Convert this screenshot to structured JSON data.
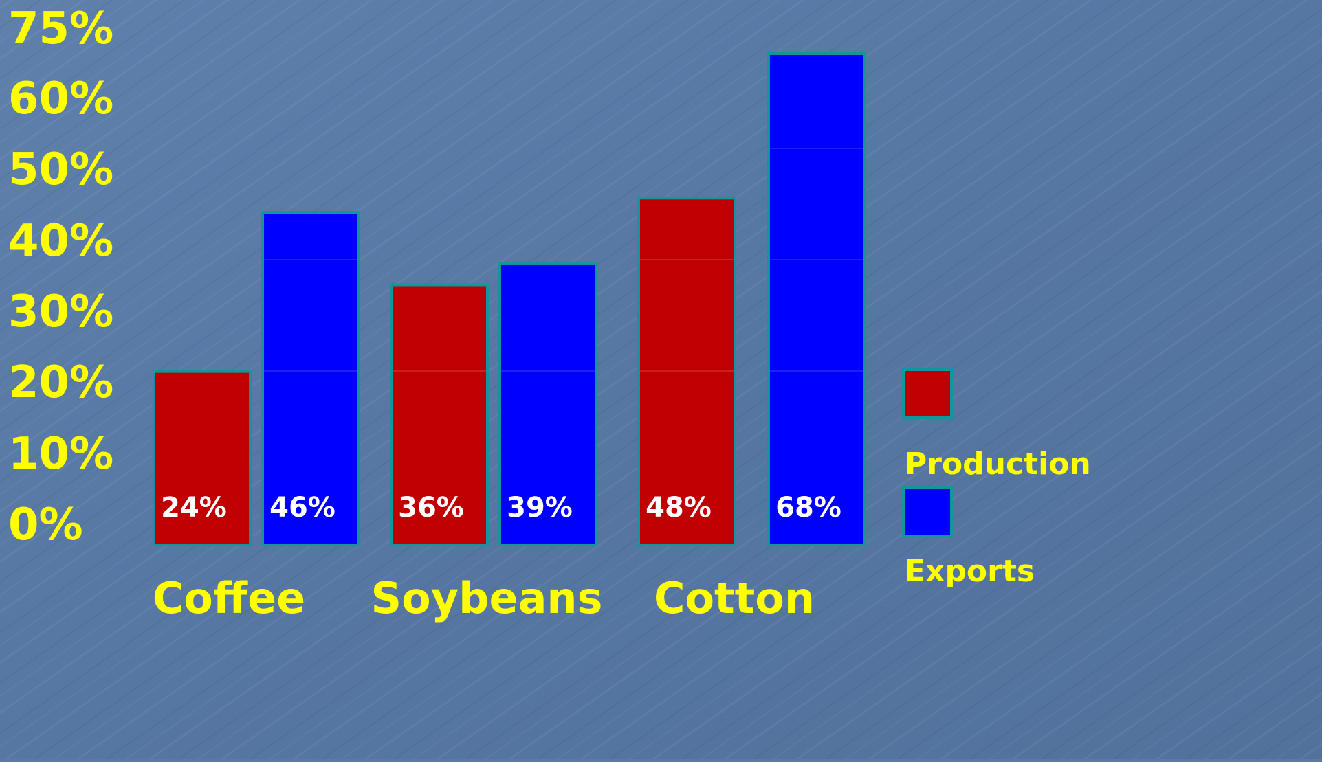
{
  "chart_data": {
    "type": "bar",
    "title": "",
    "xlabel": "",
    "ylabel": "",
    "categories": [
      "Coffee",
      "Soybeans",
      "Cotton"
    ],
    "series": [
      {
        "name": "Production",
        "values": [
          24,
          36,
          48
        ],
        "labels": [
          "24%",
          "36%",
          "48%"
        ],
        "color": "#c00000"
      },
      {
        "name": "Exports",
        "values": [
          46,
          39,
          68
        ],
        "labels": [
          "46%",
          "39%",
          "68%"
        ],
        "color": "#0000ff"
      }
    ],
    "y_ticks": [
      {
        "value": 0,
        "label": "0%"
      },
      {
        "value": 10,
        "label": "10%"
      },
      {
        "value": 20,
        "label": "20%"
      },
      {
        "value": 30,
        "label": "30%"
      },
      {
        "value": 40,
        "label": "40%"
      },
      {
        "value": 50,
        "label": "50%"
      },
      {
        "value": 60,
        "label": "60%"
      },
      {
        "value": 75,
        "label": "75%"
      }
    ],
    "ylim": [
      0,
      75
    ],
    "grid": false,
    "legend_position": "right",
    "colors": {
      "background": "#587aa5",
      "text_yellow": "#ffff00",
      "bar_label": "#ffffff",
      "bar_outline": "#13969a"
    }
  }
}
